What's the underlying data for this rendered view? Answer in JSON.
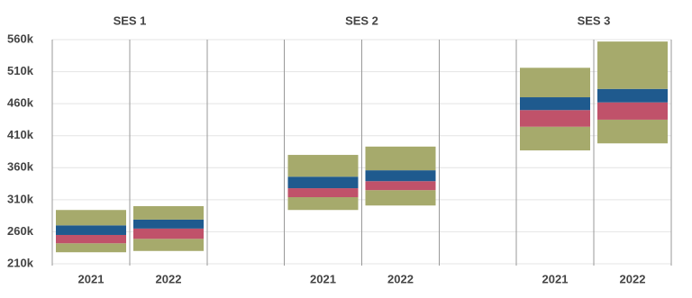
{
  "chart_data": {
    "type": "box",
    "colors": {
      "outer": "#a6aa6c",
      "lower": "#c0526a",
      "upper": "#1f5a8e"
    },
    "ylim": [
      210000,
      560000
    ],
    "yticks": [
      {
        "value": 210000,
        "label": "210k"
      },
      {
        "value": 260000,
        "label": "260k"
      },
      {
        "value": 310000,
        "label": "310k"
      },
      {
        "value": 360000,
        "label": "360k"
      },
      {
        "value": 410000,
        "label": "410k"
      },
      {
        "value": 460000,
        "label": "460k"
      },
      {
        "value": 510000,
        "label": "510k"
      },
      {
        "value": 560000,
        "label": "560k"
      }
    ],
    "grid": true,
    "groups": [
      {
        "name": "SES 1",
        "categories": [
          "2021",
          "2022"
        ],
        "boxes": [
          {
            "min": 228000,
            "q1": 242000,
            "median": 255000,
            "q3": 270000,
            "max": 294000
          },
          {
            "min": 230000,
            "q1": 249000,
            "median": 265000,
            "q3": 279000,
            "max": 300000
          }
        ]
      },
      {
        "name": "SES 2",
        "categories": [
          "2021",
          "2022"
        ],
        "boxes": [
          {
            "min": 294000,
            "q1": 314000,
            "median": 328000,
            "q3": 346000,
            "max": 380000
          },
          {
            "min": 301000,
            "q1": 325000,
            "median": 339000,
            "q3": 356000,
            "max": 393000
          }
        ]
      },
      {
        "name": "SES 3",
        "categories": [
          "2021",
          "2022"
        ],
        "boxes": [
          {
            "min": 387000,
            "q1": 424000,
            "median": 450000,
            "q3": 470000,
            "max": 516000
          },
          {
            "min": 398000,
            "q1": 435000,
            "median": 462000,
            "q3": 483000,
            "max": 557000
          }
        ]
      }
    ]
  }
}
